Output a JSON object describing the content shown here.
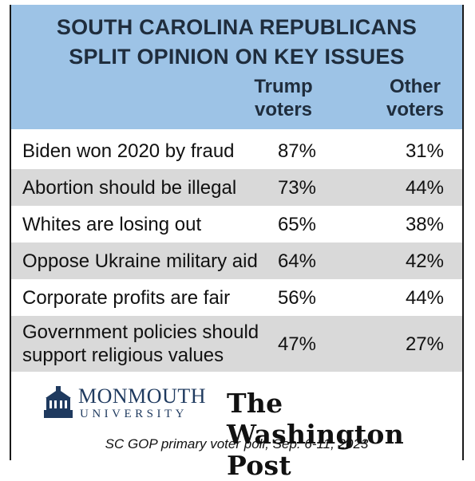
{
  "chart_data": {
    "type": "table",
    "title": [
      "SOUTH CAROLINA REPUBLICANS",
      "SPLIT OPINION ON KEY ISSUES"
    ],
    "columns": [
      {
        "line1": "Trump",
        "line2": "voters"
      },
      {
        "line1": "Other",
        "line2": "voters"
      }
    ],
    "rows": [
      {
        "label": [
          "Biden won 2020 by fraud"
        ],
        "trump": "87%",
        "other": "31%"
      },
      {
        "label": [
          "Abortion should be illegal"
        ],
        "trump": "73%",
        "other": "44%"
      },
      {
        "label": [
          "Whites are losing out"
        ],
        "trump": "65%",
        "other": "38%"
      },
      {
        "label": [
          "Oppose Ukraine military aid"
        ],
        "trump": "64%",
        "other": "42%"
      },
      {
        "label": [
          "Corporate profits are fair"
        ],
        "trump": "56%",
        "other": "44%"
      },
      {
        "label": [
          "Government policies should",
          "support religious values"
        ],
        "trump": "47%",
        "other": "27%"
      }
    ],
    "series": [
      {
        "name": "Trump voters",
        "values": [
          87,
          73,
          65,
          64,
          56,
          47
        ]
      },
      {
        "name": "Other voters",
        "values": [
          31,
          44,
          38,
          42,
          44,
          27
        ]
      }
    ],
    "colors": {
      "header": "#9dc3e6",
      "shade": "#d9d9d9",
      "text": "#111111"
    }
  },
  "logos": {
    "monmouth_name": "MONMOUTH",
    "monmouth_sub": "UNIVERSITY",
    "wapo": "The Washington Post"
  },
  "source": "SC GOP primary voter poll;  Sep. 6-11, 2023"
}
